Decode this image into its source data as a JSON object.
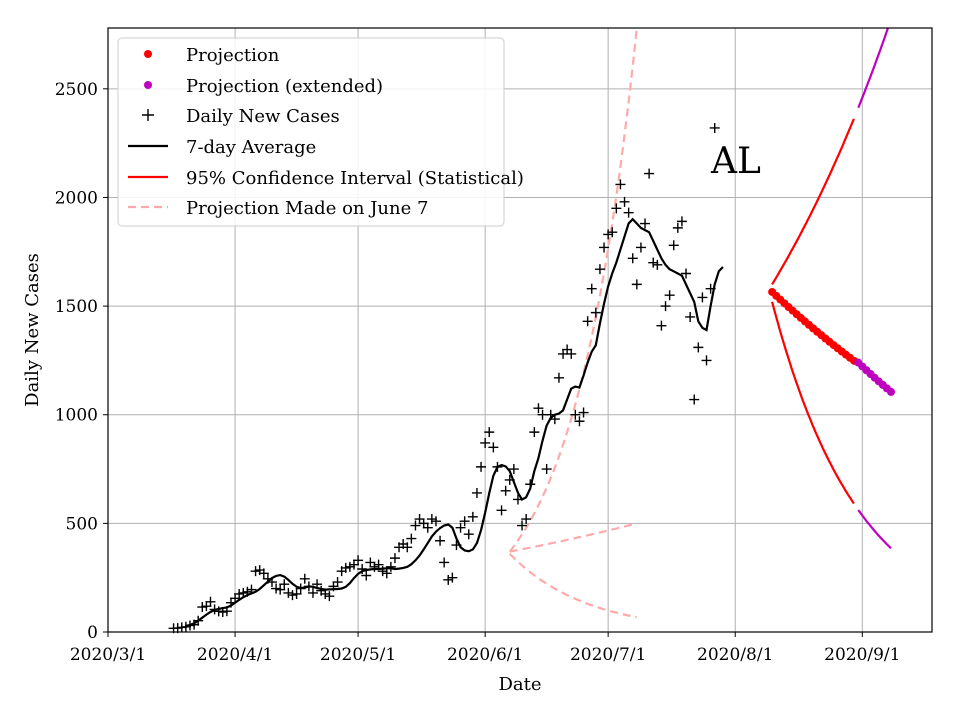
{
  "chart_data": {
    "type": "line",
    "title": "AL",
    "xlabel": "Date",
    "ylabel": "Daily New Cases",
    "xlim": [
      "2020-03-01",
      "2020-09-18"
    ],
    "ylim": [
      0,
      2780
    ],
    "grid": true,
    "legend_position": "top-left",
    "x_ticks": [
      "2020/3/1",
      "2020/4/1",
      "2020/5/1",
      "2020/6/1",
      "2020/7/1",
      "2020/8/1",
      "2020/9/1"
    ],
    "y_ticks": [
      "0",
      "500",
      "1000",
      "1500",
      "2000",
      "2500"
    ],
    "legend": [
      {
        "label": "Projection",
        "style": "dot",
        "color": "#ff0000"
      },
      {
        "label": "Projection (extended)",
        "style": "dot",
        "color": "#bf00bf"
      },
      {
        "label": "Daily New Cases",
        "style": "plus",
        "color": "#000000"
      },
      {
        "label": "7-day Average",
        "style": "line",
        "color": "#000000"
      },
      {
        "label": "95% Confidence Interval (Statistical)",
        "style": "line",
        "color": "#ff0000"
      },
      {
        "label": "Projection Made on June 7",
        "style": "dashed",
        "color": "#ffaaaa"
      }
    ],
    "series": [
      {
        "name": "Daily New Cases",
        "start_date": "2020-03-17",
        "values": [
          17,
          18,
          21,
          24,
          30,
          34,
          52,
          115,
          119,
          139,
          104,
          95,
          92,
          96,
          135,
          155,
          175,
          180,
          185,
          195,
          280,
          285,
          270,
          245,
          230,
          200,
          195,
          220,
          180,
          170,
          175,
          200,
          245,
          210,
          180,
          220,
          190,
          175,
          165,
          210,
          230,
          280,
          295,
          300,
          310,
          330,
          290,
          260,
          320,
          300,
          310,
          280,
          270,
          300,
          340,
          390,
          405,
          390,
          430,
          490,
          520,
          500,
          480,
          520,
          510,
          420,
          320,
          240,
          250,
          400,
          480,
          510,
          450,
          530,
          640,
          760,
          870,
          920,
          850,
          760,
          560,
          650,
          700,
          750,
          610,
          490,
          520,
          680,
          920,
          1030,
          1000,
          750,
          1000,
          980,
          1170,
          1280,
          1300,
          1280,
          1000,
          970,
          1010,
          1430,
          1580,
          1470,
          1670,
          1770,
          1830,
          1840,
          1950,
          2060,
          1980,
          1930,
          1720,
          1600,
          1770,
          1880,
          2110,
          1700,
          1690,
          1410,
          1500,
          1550,
          1780,
          1860,
          1890,
          1650,
          1450,
          1070,
          1310,
          1540,
          1250,
          1580,
          2320
        ]
      },
      {
        "name": "7-day Average",
        "start_date": "2020-03-20",
        "values": [
          28,
          32,
          40,
          52,
          66,
          80,
          92,
          102,
          106,
          110,
          113,
          122,
          135,
          148,
          160,
          170,
          178,
          185,
          198,
          215,
          232,
          248,
          258,
          262,
          255,
          240,
          222,
          208,
          202,
          205,
          210,
          208,
          202,
          198,
          195,
          196,
          197,
          198,
          200,
          208,
          225,
          248,
          268,
          280,
          285,
          288,
          290,
          290,
          292,
          293,
          293,
          290,
          292,
          295,
          300,
          312,
          330,
          352,
          380,
          410,
          440,
          462,
          478,
          490,
          495,
          480,
          430,
          390,
          375,
          372,
          380,
          410,
          470,
          550,
          640,
          720,
          760,
          768,
          762,
          740,
          690,
          640,
          610,
          620,
          660,
          740,
          800,
          880,
          950,
          985,
          1000,
          1005,
          1020,
          1070,
          1120,
          1130,
          1125,
          1180,
          1240,
          1290,
          1320,
          1420,
          1510,
          1590,
          1650,
          1700,
          1760,
          1820,
          1880,
          1900,
          1880,
          1860,
          1850,
          1840,
          1800,
          1760,
          1720,
          1690,
          1670,
          1660,
          1650,
          1640,
          1600,
          1560,
          1520,
          1430,
          1400,
          1390,
          1500,
          1600,
          1660,
          1680
        ]
      },
      {
        "name": "Projection",
        "start_date": "2020-08-10",
        "end_date": "2020-08-30",
        "start_value": 1565,
        "end_value": 1248
      },
      {
        "name": "Projection (extended)",
        "start_date": "2020-08-31",
        "end_date": "2020-09-08",
        "start_value": 1240,
        "end_value": 1105
      },
      {
        "name": "95% Confidence Interval (Statistical) upper",
        "start_date": "2020-08-10",
        "end_date": "2020-09-08",
        "start_value": 1600,
        "end_value": 2820
      },
      {
        "name": "95% Confidence Interval (Statistical) lower",
        "start_date": "2020-08-10",
        "end_date": "2020-09-08",
        "start_value": 1520,
        "end_value": 385
      },
      {
        "name": "Projection Made on June 7 (central)",
        "start_date": "2020-06-07",
        "end_date": "2020-07-08",
        "start_value": 370,
        "end_value": 500
      },
      {
        "name": "Projection Made on June 7 (upper)",
        "start_date": "2020-06-07",
        "end_date": "2020-07-08",
        "start_value": 370,
        "end_value": 2780
      },
      {
        "name": "Projection Made on June 7 (lower)",
        "start_date": "2020-06-07",
        "end_date": "2020-07-08",
        "start_value": 360,
        "end_value": 68
      }
    ]
  }
}
